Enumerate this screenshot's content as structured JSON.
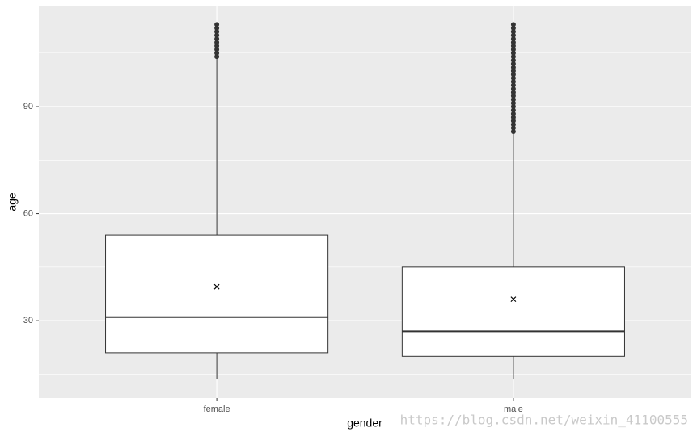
{
  "chart_data": {
    "type": "boxplot",
    "x_label": "gender",
    "y_label": "age",
    "categories": [
      "female",
      "male"
    ],
    "whisker_low": [
      13.5,
      13.5
    ],
    "q1": [
      21,
      20
    ],
    "median": [
      31,
      27
    ],
    "q3": [
      54,
      45
    ],
    "whisker_high": [
      103.5,
      82.5
    ],
    "mean": [
      39.5,
      36
    ],
    "outliers": [
      [
        104,
        105,
        106,
        107,
        108,
        109,
        110,
        111,
        112,
        113
      ],
      [
        83,
        84,
        85,
        86,
        87,
        88,
        89,
        90,
        91,
        92,
        93,
        94,
        95,
        96,
        97,
        98,
        99,
        100,
        101,
        102,
        103,
        104,
        105,
        106,
        107,
        108,
        109,
        110,
        111,
        112,
        113
      ]
    ],
    "ylim": [
      8.3,
      118.3
    ],
    "yticks": [
      30,
      60,
      90
    ],
    "minor_yticks": [
      15,
      45,
      75,
      105
    ],
    "grid": true,
    "watermark": "https://blog.csdn.net/weixin_41100555"
  }
}
